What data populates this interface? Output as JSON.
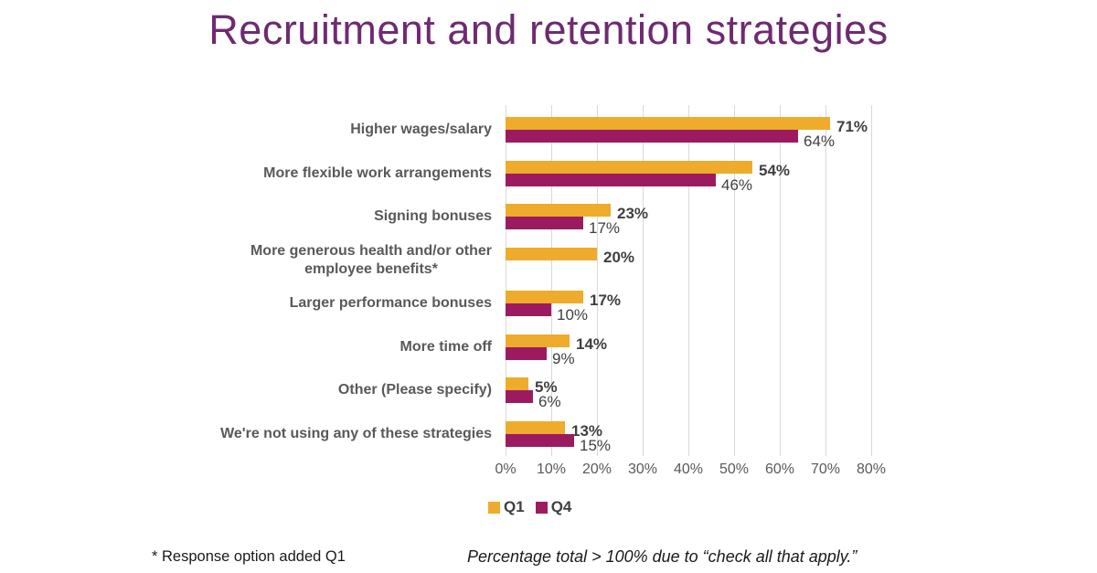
{
  "title": "Recruitment and retention strategies",
  "chart_data": {
    "type": "bar",
    "orientation": "horizontal",
    "title": "Recruitment and retention strategies",
    "categories": [
      "Higher wages/salary",
      "More flexible work arrangements",
      "Signing bonuses",
      "More generous health and/or other\nemployee benefits*",
      "Larger performance bonuses",
      "More time off",
      "Other (Please specify)",
      "We're not using any of these strategies"
    ],
    "series": [
      {
        "name": "Q1",
        "color": "#EEAB2C",
        "values": [
          71,
          54,
          23,
          20,
          17,
          14,
          5,
          13
        ]
      },
      {
        "name": "Q4",
        "color": "#9C1B60",
        "values": [
          64,
          46,
          17,
          null,
          10,
          9,
          6,
          15
        ]
      }
    ],
    "value_suffix": "%",
    "xlim": [
      0,
      80
    ],
    "x_ticks": [
      "0%",
      "10%",
      "20%",
      "30%",
      "40%",
      "50%",
      "60%",
      "70%",
      "80%"
    ],
    "grid": true,
    "data_labels": true,
    "legend_position": "bottom"
  },
  "footnotes": {
    "left": "* Response option added Q1",
    "right": "Percentage total > 100% due to “check all that apply.”"
  },
  "colors": {
    "title_text": "#6E2B71",
    "q1_bar": "#EEAB2C",
    "q4_bar": "#9C1B60",
    "category_text": "#595959",
    "value_text": "#3F3F3F",
    "gridline": "#D9D9D9",
    "background": "#FFFFFF"
  }
}
